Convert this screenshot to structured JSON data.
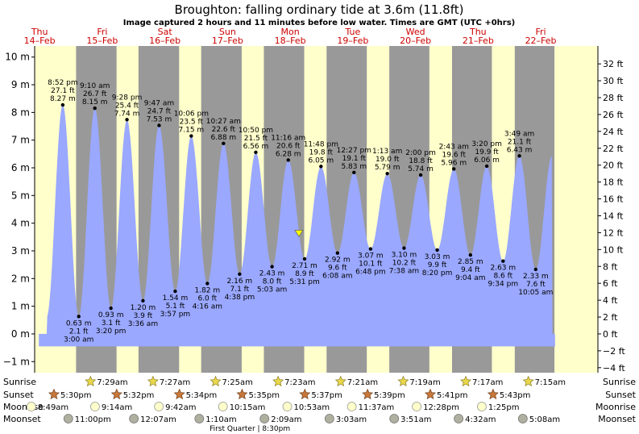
{
  "title": "Broughton: falling  ordinary tide at 3.6m (11.8ft)",
  "subtitle": "Image captured 2 hours and 11 minutes before low water. Times are GMT (UTC +0hrs)",
  "colors": {
    "day": "#ffffcc",
    "night": "#999999",
    "tide": "#9aa8ff",
    "day_label": "#cc0000",
    "marker": "#ffff00"
  },
  "chart_data": {
    "type": "area",
    "title": "Broughton: falling  ordinary tide at 3.6m (11.8ft)",
    "subtitle": "Image captured 2 hours and 11 minutes before low water. Times are GMT (UTC +0hrs)",
    "xlabel": "",
    "ylabel_left": "m",
    "ylabel_right": "ft",
    "ylim_m": [
      -1.4,
      10.4
    ],
    "xlim_hours": [
      -13.9,
      201.9
    ],
    "left_ticks": [
      {
        "v": -1,
        "label": "−1 m"
      },
      {
        "v": 0,
        "label": "0 m"
      },
      {
        "v": 1,
        "label": "1 m"
      },
      {
        "v": 2,
        "label": "2 m"
      },
      {
        "v": 3,
        "label": "3 m"
      },
      {
        "v": 4,
        "label": "4 m"
      },
      {
        "v": 5,
        "label": "5 m"
      },
      {
        "v": 6,
        "label": "6 m"
      },
      {
        "v": 7,
        "label": "7 m"
      },
      {
        "v": 8,
        "label": "8 m"
      },
      {
        "v": 9,
        "label": "9 m"
      },
      {
        "v": 10,
        "label": "10 m"
      }
    ],
    "right_ticks": [
      {
        "v": -4,
        "label": "−4 ft"
      },
      {
        "v": -2,
        "label": "−2 ft"
      },
      {
        "v": 0,
        "label": "0 ft"
      },
      {
        "v": 2,
        "label": "2 ft"
      },
      {
        "v": 4,
        "label": "4 ft"
      },
      {
        "v": 6,
        "label": "6 ft"
      },
      {
        "v": 8,
        "label": "8 ft"
      },
      {
        "v": 10,
        "label": "10 ft"
      },
      {
        "v": 12,
        "label": "12 ft"
      },
      {
        "v": 14,
        "label": "14 ft"
      },
      {
        "v": 16,
        "label": "16 ft"
      },
      {
        "v": 18,
        "label": "18 ft"
      },
      {
        "v": 20,
        "label": "20 ft"
      },
      {
        "v": 22,
        "label": "22 ft"
      },
      {
        "v": 24,
        "label": "24 ft"
      },
      {
        "v": 26,
        "label": "26 ft"
      },
      {
        "v": 28,
        "label": "28 ft"
      },
      {
        "v": 30,
        "label": "30 ft"
      },
      {
        "v": 32,
        "label": "32 ft"
      }
    ],
    "days": [
      {
        "name": "Thu",
        "date": "14–Feb",
        "hour": -12
      },
      {
        "name": "Fri",
        "date": "15–Feb",
        "hour": 12
      },
      {
        "name": "Sat",
        "date": "16–Feb",
        "hour": 36
      },
      {
        "name": "Sun",
        "date": "17–Feb",
        "hour": 60
      },
      {
        "name": "Mon",
        "date": "18–Feb",
        "hour": 84
      },
      {
        "name": "Tue",
        "date": "19–Feb",
        "hour": 108
      },
      {
        "name": "Wed",
        "date": "20–Feb",
        "hour": 132
      },
      {
        "name": "Thu",
        "date": "21–Feb",
        "hour": 156
      },
      {
        "name": "Fri",
        "date": "22–Feb",
        "hour": 180
      }
    ],
    "nights": [
      {
        "start": 1.97,
        "end": 17.48
      },
      {
        "start": 25.88,
        "end": 41.45
      },
      {
        "start": 49.9,
        "end": 65.42
      },
      {
        "start": 73.92,
        "end": 89.38
      },
      {
        "start": 97.95,
        "end": 113.35
      },
      {
        "start": 121.98,
        "end": 137.32
      },
      {
        "start": 146.02,
        "end": 161.28
      },
      {
        "start": 170.05,
        "end": 185.25
      }
    ],
    "tides": [
      {
        "kind": "high",
        "hour": -3.13,
        "m": 8.27,
        "time": "8:52 pm",
        "ft": "27.1 ft",
        "mlabel": "8.27 m"
      },
      {
        "kind": "low",
        "hour": 3.0,
        "m": 0.63,
        "time": "3:00 am",
        "ft": "2.1 ft",
        "mlabel": "0.63 m"
      },
      {
        "kind": "high",
        "hour": 9.17,
        "m": 8.15,
        "time": "9:10 am",
        "ft": "26.7 ft",
        "mlabel": "8.15 m"
      },
      {
        "kind": "low",
        "hour": 15.33,
        "m": 0.93,
        "time": "3:20 pm",
        "ft": "3.1 ft",
        "mlabel": "0.93 m"
      },
      {
        "kind": "high",
        "hour": 21.47,
        "m": 7.74,
        "time": "9:28 pm",
        "ft": "25.4 ft",
        "mlabel": "7.74 m"
      },
      {
        "kind": "low",
        "hour": 27.6,
        "m": 1.2,
        "time": "3:36 am",
        "ft": "3.9 ft",
        "mlabel": "1.20 m"
      },
      {
        "kind": "high",
        "hour": 33.78,
        "m": 7.53,
        "time": "9:47 am",
        "ft": "24.7 ft",
        "mlabel": "7.53 m"
      },
      {
        "kind": "low",
        "hour": 39.95,
        "m": 1.54,
        "time": "3:57 pm",
        "ft": "5.1 ft",
        "mlabel": "1.54 m"
      },
      {
        "kind": "high",
        "hour": 46.1,
        "m": 7.15,
        "time": "10:06 pm",
        "ft": "23.5 ft",
        "mlabel": "7.15 m"
      },
      {
        "kind": "low",
        "hour": 52.27,
        "m": 1.82,
        "time": "4:16 am",
        "ft": "6.0 ft",
        "mlabel": "1.82 m"
      },
      {
        "kind": "high",
        "hour": 58.45,
        "m": 6.88,
        "time": "10:27 am",
        "ft": "22.6 ft",
        "mlabel": "6.88 m"
      },
      {
        "kind": "low",
        "hour": 64.63,
        "m": 2.16,
        "time": "4:38 pm",
        "ft": "7.1 ft",
        "mlabel": "2.16 m"
      },
      {
        "kind": "high",
        "hour": 70.83,
        "m": 6.56,
        "time": "10:50 pm",
        "ft": "21.5 ft",
        "mlabel": "6.56 m"
      },
      {
        "kind": "low",
        "hour": 77.05,
        "m": 2.43,
        "time": "5:03 am",
        "ft": "8.0 ft",
        "mlabel": "2.43 m"
      },
      {
        "kind": "high",
        "hour": 83.27,
        "m": 6.28,
        "time": "11:16 am",
        "ft": "20.6 ft",
        "mlabel": "6.28 m"
      },
      {
        "kind": "low",
        "hour": 89.52,
        "m": 2.71,
        "time": "5:31 pm",
        "ft": "8.9 ft",
        "mlabel": "2.71 m"
      },
      {
        "kind": "high",
        "hour": 95.8,
        "m": 6.05,
        "time": "11:48 pm",
        "ft": "19.8 ft",
        "mlabel": "6.05 m"
      },
      {
        "kind": "low",
        "hour": 102.13,
        "m": 2.92,
        "time": "6:08 am",
        "ft": "9.6 ft",
        "mlabel": "2.92 m"
      },
      {
        "kind": "high",
        "hour": 108.45,
        "m": 5.83,
        "time": "12:27 pm",
        "ft": "19.1 ft",
        "mlabel": "5.83 m"
      },
      {
        "kind": "low",
        "hour": 114.8,
        "m": 3.07,
        "time": "6:48 pm",
        "ft": "10.1 ft",
        "mlabel": "3.07 m"
      },
      {
        "kind": "high",
        "hour": 121.22,
        "m": 5.79,
        "time": "1:13 am",
        "ft": "19.0 ft",
        "mlabel": "5.79 m"
      },
      {
        "kind": "low",
        "hour": 127.63,
        "m": 3.1,
        "time": "7:38 am",
        "ft": "10.2 ft",
        "mlabel": "3.10 m"
      },
      {
        "kind": "high",
        "hour": 134.0,
        "m": 5.74,
        "time": "2:00 pm",
        "ft": "18.8 ft",
        "mlabel": "5.74 m"
      },
      {
        "kind": "low",
        "hour": 140.33,
        "m": 3.03,
        "time": "8:20 pm",
        "ft": "9.9 ft",
        "mlabel": "3.03 m"
      },
      {
        "kind": "high",
        "hour": 146.72,
        "m": 5.96,
        "time": "2:43 am",
        "ft": "19.6 ft",
        "mlabel": "5.96 m"
      },
      {
        "kind": "low",
        "hour": 153.07,
        "m": 2.85,
        "time": "9:04 am",
        "ft": "9.4 ft",
        "mlabel": "2.85 m"
      },
      {
        "kind": "high",
        "hour": 159.33,
        "m": 6.06,
        "time": "3:20 pm",
        "ft": "19.9 ft",
        "mlabel": "6.06 m"
      },
      {
        "kind": "low",
        "hour": 165.57,
        "m": 2.63,
        "time": "9:34 pm",
        "ft": "8.6 ft",
        "mlabel": "2.63 m"
      },
      {
        "kind": "high",
        "hour": 171.82,
        "m": 6.43,
        "time": "3:49 am",
        "ft": "21.1 ft",
        "mlabel": "6.43 m"
      },
      {
        "kind": "low",
        "hour": 178.08,
        "m": 2.33,
        "time": "10:05 am",
        "ft": "7.6 ft",
        "mlabel": "2.33 m"
      }
    ],
    "current": {
      "hour": 87.35,
      "m": 3.6
    }
  },
  "astro": {
    "row_labels": {
      "sunrise": "Sunrise",
      "sunset": "Sunset",
      "moonrise": "Moonrise",
      "moonset": "Moonset"
    },
    "sunrise": [
      {
        "hour": 7.48,
        "label": "7:29am"
      },
      {
        "hour": 31.45,
        "label": "7:27am"
      },
      {
        "hour": 55.42,
        "label": "7:25am"
      },
      {
        "hour": 79.38,
        "label": "7:23am"
      },
      {
        "hour": 103.35,
        "label": "7:21am"
      },
      {
        "hour": 127.32,
        "label": "7:19am"
      },
      {
        "hour": 151.28,
        "label": "7:17am"
      },
      {
        "hour": 175.25,
        "label": "7:15am"
      }
    ],
    "sunset": [
      {
        "hour": -6.5,
        "label": "5:30pm"
      },
      {
        "hour": 17.53,
        "label": "5:32pm"
      },
      {
        "hour": 41.57,
        "label": "5:34pm"
      },
      {
        "hour": 65.58,
        "label": "5:35pm"
      },
      {
        "hour": 89.62,
        "label": "5:37pm"
      },
      {
        "hour": 113.65,
        "label": "5:39pm"
      },
      {
        "hour": 137.68,
        "label": "5:41pm"
      },
      {
        "hour": 161.72,
        "label": "5:43pm"
      }
    ],
    "moonrise": [
      {
        "hour": -15.18,
        "label": "8:49am"
      },
      {
        "hour": 9.23,
        "label": "9:14am"
      },
      {
        "hour": 33.7,
        "label": "9:42am"
      },
      {
        "hour": 58.25,
        "label": "10:15am"
      },
      {
        "hour": 82.88,
        "label": "10:53am"
      },
      {
        "hour": 107.62,
        "label": "11:37am"
      },
      {
        "hour": 132.47,
        "label": "12:28pm"
      },
      {
        "hour": 157.42,
        "label": "1:25pm"
      }
    ],
    "moonset": [
      {
        "hour": -1.0,
        "label": "11:00pm"
      },
      {
        "hour": 24.12,
        "label": "12:07am"
      },
      {
        "hour": 49.17,
        "label": "1:10am"
      },
      {
        "hour": 74.15,
        "label": "2:09am"
      },
      {
        "hour": 99.05,
        "label": "3:03am"
      },
      {
        "hour": 123.85,
        "label": "3:51am"
      },
      {
        "hour": 148.53,
        "label": "4:32am"
      },
      {
        "hour": 173.13,
        "label": "5:08am"
      }
    ],
    "moon_phase": "First Quarter | 8:30pm"
  }
}
